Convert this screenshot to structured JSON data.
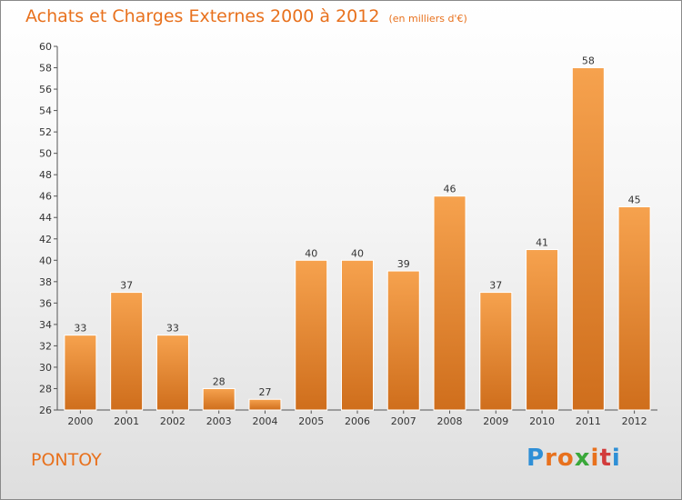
{
  "header": {
    "title": "Achats et Charges Externes 2000 à 2012",
    "subtitle": "(en milliers d'€)"
  },
  "footer": {
    "place": "PONTOY",
    "brand": "Proxiti"
  },
  "colors": {
    "title": "#e8711d",
    "bar_top": "#f6a24e",
    "bar_bottom": "#cf6e1c"
  },
  "chart_data": {
    "type": "bar",
    "title": "Achats et Charges Externes 2000 à 2012",
    "subtitle": "(en milliers d'€)",
    "categories": [
      "2000",
      "2001",
      "2002",
      "2003",
      "2004",
      "2005",
      "2006",
      "2007",
      "2008",
      "2009",
      "2010",
      "2011",
      "2012"
    ],
    "values": [
      33,
      37,
      33,
      28,
      27,
      40,
      40,
      39,
      46,
      37,
      41,
      58,
      45
    ],
    "ylim": [
      26,
      60
    ],
    "ytick_step": 2,
    "grid": false,
    "data_labels": true
  }
}
